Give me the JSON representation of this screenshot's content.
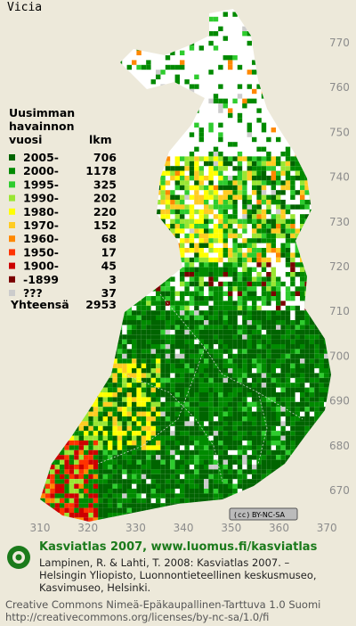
{
  "title": "Vicia",
  "legend": {
    "header": [
      "Uusimman",
      "havainnon",
      "vuosi"
    ],
    "count_header": "lkm",
    "items": [
      {
        "label": "2005-",
        "count": 706,
        "color": "#006400"
      },
      {
        "label": "2000-",
        "count": 1178,
        "color": "#008a00"
      },
      {
        "label": "1995-",
        "count": 325,
        "color": "#2ecc2e"
      },
      {
        "label": "1990-",
        "count": 202,
        "color": "#99e633"
      },
      {
        "label": "1980-",
        "count": 220,
        "color": "#ffff00"
      },
      {
        "label": "1970-",
        "count": 152,
        "color": "#ffcc22"
      },
      {
        "label": "1960-",
        "count": 68,
        "color": "#ff8800"
      },
      {
        "label": "1950-",
        "count": 17,
        "color": "#ff3300"
      },
      {
        "label": "1900-",
        "count": 45,
        "color": "#cc0000"
      },
      {
        "label": "-1899",
        "count": 3,
        "color": "#7a0000"
      },
      {
        "label": "???",
        "count": 37,
        "color": "#cccccc"
      }
    ],
    "total_label": "Yhteensä",
    "total": 2953
  },
  "axes": {
    "y_ticks": [
      770,
      760,
      750,
      740,
      730,
      720,
      710,
      700,
      690,
      680,
      670
    ],
    "x_ticks": [
      310,
      320,
      330,
      340,
      350,
      360,
      370
    ]
  },
  "badge": "BY-NC-SA",
  "footer": {
    "heading": "Kasviatlas 2007, www.luomus.fi/kasviatlas",
    "citation": [
      "Lampinen, R. & Lahti, T. 2008: Kasviatlas 2007. –",
      "Helsingin Yliopisto, Luonnontieteellinen keskusmuseo,",
      "Kasvimuseo, Helsinki."
    ],
    "license": [
      "Creative Commons Nimeä-Epäkaupallinen-Tarttuva 1.0 Suomi",
      "http://creativecommons.org/licenses/by-nc-sa/1.0/fi"
    ]
  }
}
